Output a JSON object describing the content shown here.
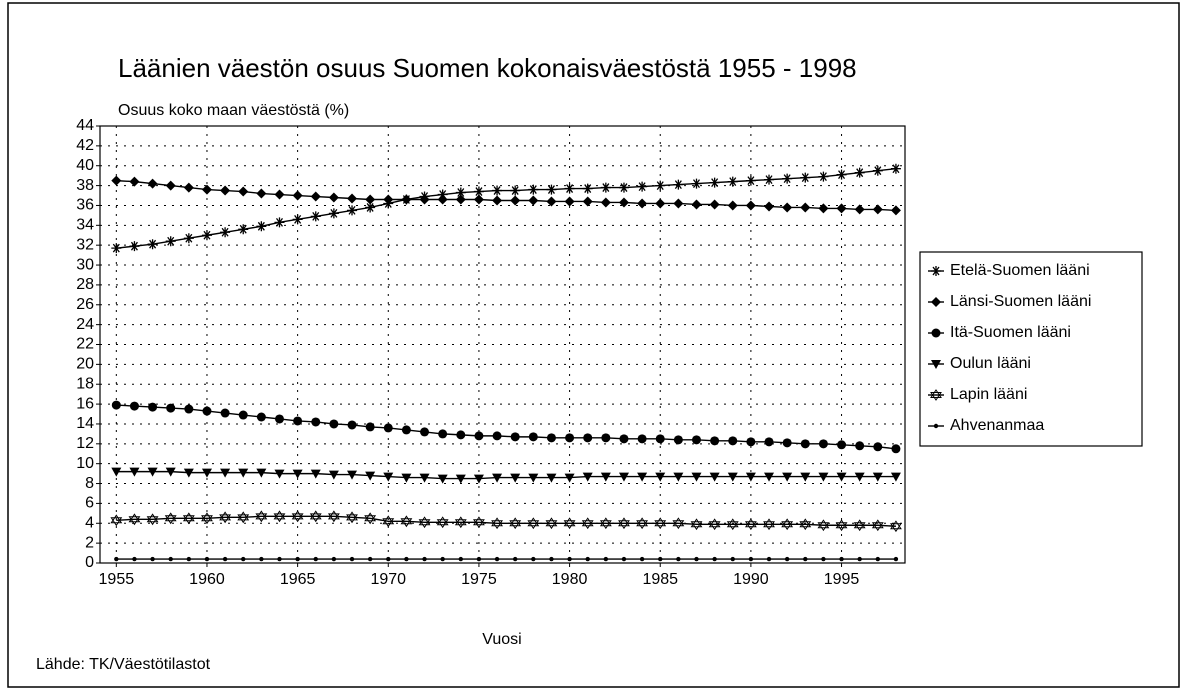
{
  "chart_data": {
    "type": "line",
    "title": "Läänien väestön osuus Suomen kokonaisväestöstä 1955 - 1998",
    "y_label": "Osuus koko maan väestöstä (%)",
    "x_label": "Vuosi",
    "source": "Lähde: TK/Väestötilastot",
    "x": [
      1955,
      1956,
      1957,
      1958,
      1959,
      1960,
      1961,
      1962,
      1963,
      1964,
      1965,
      1966,
      1967,
      1968,
      1969,
      1970,
      1971,
      1972,
      1973,
      1974,
      1975,
      1976,
      1977,
      1978,
      1979,
      1980,
      1981,
      1982,
      1983,
      1984,
      1985,
      1986,
      1987,
      1988,
      1989,
      1990,
      1991,
      1992,
      1993,
      1994,
      1995,
      1996,
      1997,
      1998
    ],
    "xlim": [
      1954.1,
      1998.5
    ],
    "xticks": [
      1955,
      1960,
      1965,
      1970,
      1975,
      1980,
      1985,
      1990,
      1995
    ],
    "ylim": [
      0,
      44
    ],
    "yticks": [
      0,
      2,
      4,
      6,
      8,
      10,
      12,
      14,
      16,
      18,
      20,
      22,
      24,
      26,
      28,
      30,
      32,
      34,
      36,
      38,
      40,
      42,
      44
    ],
    "grid": true,
    "legend": "right",
    "series": [
      {
        "name": "Etelä-Suomen lääni",
        "color": "#000000",
        "marker": "star",
        "values": [
          31.7,
          31.9,
          32.1,
          32.4,
          32.7,
          33.0,
          33.3,
          33.6,
          33.9,
          34.3,
          34.6,
          34.9,
          35.2,
          35.5,
          35.8,
          36.2,
          36.6,
          36.9,
          37.1,
          37.3,
          37.4,
          37.5,
          37.5,
          37.6,
          37.6,
          37.7,
          37.7,
          37.8,
          37.8,
          37.9,
          38.0,
          38.1,
          38.2,
          38.3,
          38.4,
          38.5,
          38.6,
          38.7,
          38.8,
          38.9,
          39.1,
          39.3,
          39.5,
          39.7
        ]
      },
      {
        "name": "Länsi-Suomen lääni",
        "color": "#000000",
        "marker": "diamond",
        "values": [
          38.5,
          38.4,
          38.2,
          38.0,
          37.8,
          37.6,
          37.5,
          37.4,
          37.2,
          37.1,
          37.0,
          36.9,
          36.8,
          36.7,
          36.6,
          36.6,
          36.6,
          36.6,
          36.6,
          36.6,
          36.6,
          36.5,
          36.5,
          36.5,
          36.4,
          36.4,
          36.4,
          36.3,
          36.3,
          36.2,
          36.2,
          36.2,
          36.1,
          36.1,
          36.0,
          36.0,
          35.9,
          35.8,
          35.8,
          35.7,
          35.7,
          35.6,
          35.6,
          35.5
        ]
      },
      {
        "name": "Itä-Suomen lääni",
        "color": "#000000",
        "marker": "circle",
        "values": [
          15.9,
          15.8,
          15.7,
          15.6,
          15.5,
          15.3,
          15.1,
          14.9,
          14.7,
          14.5,
          14.3,
          14.2,
          14.0,
          13.9,
          13.7,
          13.6,
          13.4,
          13.2,
          13.0,
          12.9,
          12.8,
          12.8,
          12.7,
          12.7,
          12.6,
          12.6,
          12.6,
          12.6,
          12.5,
          12.5,
          12.5,
          12.4,
          12.4,
          12.3,
          12.3,
          12.2,
          12.2,
          12.1,
          12.0,
          12.0,
          11.9,
          11.8,
          11.7,
          11.5
        ]
      },
      {
        "name": "Oulun lääni",
        "color": "#000000",
        "marker": "triangle-down",
        "values": [
          9.2,
          9.2,
          9.2,
          9.2,
          9.1,
          9.1,
          9.1,
          9.1,
          9.1,
          9.0,
          9.0,
          9.0,
          8.9,
          8.9,
          8.8,
          8.7,
          8.6,
          8.6,
          8.5,
          8.5,
          8.5,
          8.6,
          8.6,
          8.6,
          8.6,
          8.6,
          8.7,
          8.7,
          8.7,
          8.7,
          8.7,
          8.7,
          8.7,
          8.7,
          8.7,
          8.7,
          8.7,
          8.7,
          8.7,
          8.7,
          8.7,
          8.7,
          8.7,
          8.7
        ]
      },
      {
        "name": "Lapin lääni",
        "color": "#000000",
        "marker": "hollow-star",
        "values": [
          4.3,
          4.4,
          4.4,
          4.5,
          4.5,
          4.5,
          4.6,
          4.6,
          4.7,
          4.7,
          4.7,
          4.7,
          4.7,
          4.6,
          4.5,
          4.2,
          4.2,
          4.1,
          4.1,
          4.1,
          4.1,
          4.0,
          4.0,
          4.0,
          4.0,
          4.0,
          4.0,
          4.0,
          4.0,
          4.0,
          4.0,
          4.0,
          3.9,
          3.9,
          3.9,
          3.9,
          3.9,
          3.9,
          3.9,
          3.8,
          3.8,
          3.8,
          3.8,
          3.7
        ]
      },
      {
        "name": "Ahvenanmaa",
        "color": "#000000",
        "marker": "dot",
        "values": [
          0.4,
          0.4,
          0.4,
          0.4,
          0.4,
          0.4,
          0.4,
          0.4,
          0.4,
          0.4,
          0.4,
          0.4,
          0.4,
          0.4,
          0.4,
          0.4,
          0.4,
          0.4,
          0.4,
          0.4,
          0.4,
          0.4,
          0.4,
          0.4,
          0.4,
          0.4,
          0.4,
          0.4,
          0.4,
          0.4,
          0.4,
          0.4,
          0.4,
          0.4,
          0.4,
          0.4,
          0.4,
          0.4,
          0.4,
          0.4,
          0.4,
          0.4,
          0.4,
          0.4
        ]
      }
    ]
  }
}
